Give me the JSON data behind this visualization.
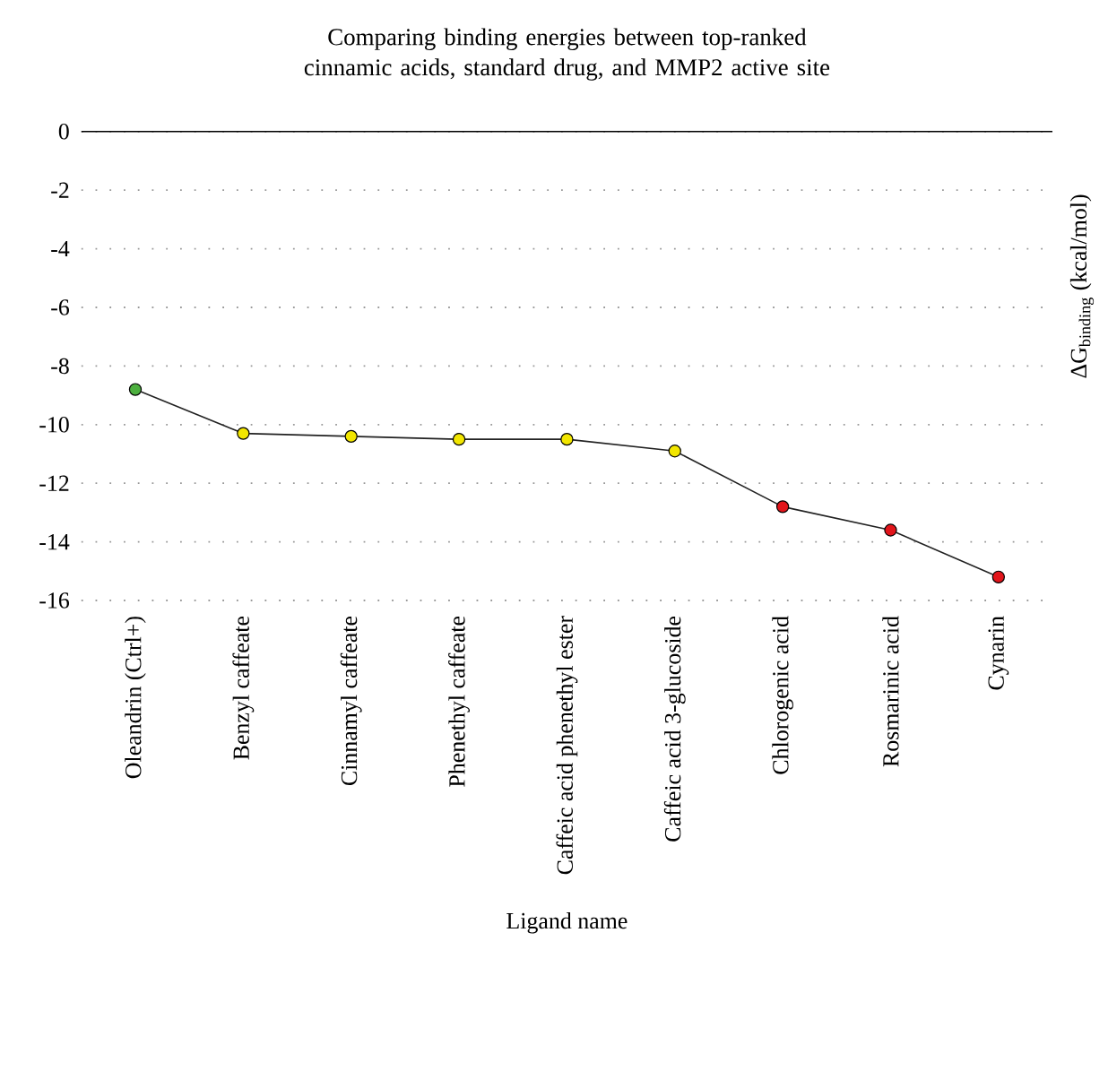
{
  "chart_data": {
    "type": "line",
    "title": "Comparing binding energies between top-ranked cinnamic acids, standard drug, and MMP2 active site",
    "xlabel": "Ligand name",
    "ylabel": "ΔG$_{binding}$ (kcal/mol)",
    "categories": [
      "Oleandrin (Ctrl+)",
      "Benzyl caffeate",
      "Cinnamyl caffeate",
      "Phenethyl caffeate",
      "Caffeic acid phenethyl ester",
      "Caffeic acid 3-glucoside",
      "Chlorogenic acid",
      "Rosmarinic acid",
      "Cynarin"
    ],
    "series": [
      {
        "color": "#222222",
        "colors": [
          "#4caf3e",
          "#f2e600",
          "#f2e600",
          "#f2e600",
          "#f2e600",
          "#f2e600",
          "#e2151b",
          "#e2151b",
          "#e2151b"
        ],
        "values": [
          -8.8,
          -10.3,
          -10.4,
          -10.5,
          -10.5,
          -10.9,
          -12.8,
          -13.6,
          -15.2
        ]
      }
    ],
    "ylim": [
      -16,
      0
    ],
    "yticks": [
      0,
      -2,
      -4,
      -6,
      -8,
      -10,
      -12,
      -14,
      -16
    ],
    "grid": "y",
    "marker": "circle",
    "line_style": "solid"
  }
}
